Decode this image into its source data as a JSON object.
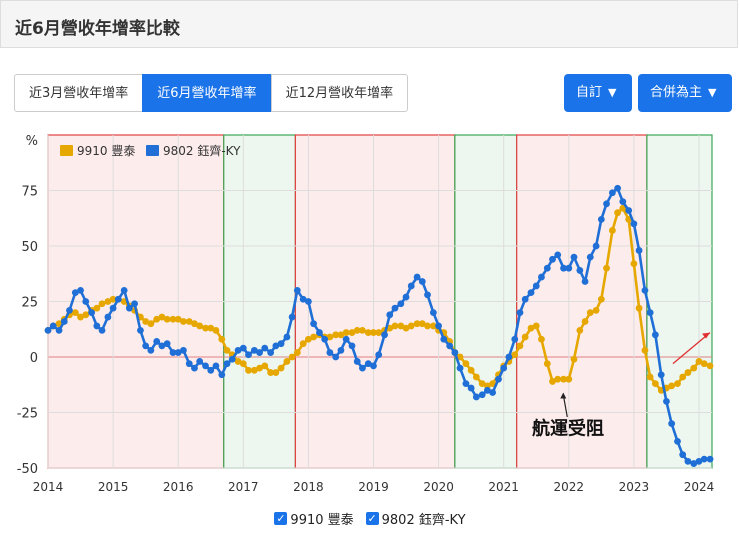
{
  "header": {
    "title": "近6月營收年增率比較"
  },
  "tabs": [
    {
      "label": "近3月營收年增率",
      "active": false
    },
    {
      "label": "近6月營收年增率",
      "active": true
    },
    {
      "label": "近12月營收年增率",
      "active": false
    }
  ],
  "buttons": {
    "custom_label": "自訂",
    "merge_label": "合併為主"
  },
  "legend": {
    "items": [
      "9910 豐泰",
      "9802 鈺齊-KY"
    ]
  },
  "chart_data": {
    "type": "line",
    "ylabel": "%",
    "ylim": [
      -50,
      100
    ],
    "yticks": [
      75,
      50,
      25,
      0,
      -25,
      -50
    ],
    "xlim": [
      2014.0,
      2024.2
    ],
    "xticks": [
      "2014",
      "2015",
      "2016",
      "2017",
      "2018",
      "2019",
      "2020",
      "2021",
      "2022",
      "2023",
      "2024"
    ],
    "grid": true,
    "legend_position": "top-left",
    "annotation": {
      "text": "航運受阻",
      "x": 2021.9,
      "y": -15
    },
    "trend_arrow": {
      "from": [
        2023.6,
        -3
      ],
      "to": [
        2024.2,
        11
      ],
      "color": "#e03030"
    },
    "regions": [
      {
        "start": 2014.0,
        "end": 2016.7,
        "type": "decline",
        "fill": "#fdecec",
        "stroke": "#e04040"
      },
      {
        "start": 2016.7,
        "end": 2017.8,
        "type": "growth",
        "fill": "#edf7ef",
        "stroke": "#3aa655"
      },
      {
        "start": 2017.8,
        "end": 2020.25,
        "type": "decline",
        "fill": "#fdecec",
        "stroke": "#e04040"
      },
      {
        "start": 2020.25,
        "end": 2021.2,
        "type": "growth",
        "fill": "#edf7ef",
        "stroke": "#3aa655"
      },
      {
        "start": 2021.2,
        "end": 2023.2,
        "type": "decline",
        "fill": "#fdecec",
        "stroke": "#e04040"
      },
      {
        "start": 2023.2,
        "end": 2024.2,
        "type": "growth",
        "fill": "#edf7ef",
        "stroke": "#3aa655"
      }
    ],
    "series": [
      {
        "name": "9910 豐泰",
        "color": "#e6a800",
        "points": [
          [
            2014.0,
            12
          ],
          [
            2014.08,
            14
          ],
          [
            2014.17,
            15
          ],
          [
            2014.25,
            17
          ],
          [
            2014.33,
            19
          ],
          [
            2014.42,
            20
          ],
          [
            2014.5,
            18
          ],
          [
            2014.58,
            19
          ],
          [
            2014.67,
            21
          ],
          [
            2014.75,
            22
          ],
          [
            2014.83,
            24
          ],
          [
            2014.92,
            25
          ],
          [
            2015.0,
            26
          ],
          [
            2015.08,
            26
          ],
          [
            2015.17,
            25
          ],
          [
            2015.25,
            23
          ],
          [
            2015.33,
            21
          ],
          [
            2015.42,
            18
          ],
          [
            2015.5,
            16
          ],
          [
            2015.58,
            15
          ],
          [
            2015.67,
            17
          ],
          [
            2015.75,
            18
          ],
          [
            2015.83,
            17
          ],
          [
            2015.92,
            17
          ],
          [
            2016.0,
            17
          ],
          [
            2016.08,
            16
          ],
          [
            2016.17,
            16
          ],
          [
            2016.25,
            15
          ],
          [
            2016.33,
            14
          ],
          [
            2016.42,
            13
          ],
          [
            2016.5,
            13
          ],
          [
            2016.58,
            12
          ],
          [
            2016.67,
            8
          ],
          [
            2016.75,
            3
          ],
          [
            2016.83,
            1
          ],
          [
            2016.92,
            -2
          ],
          [
            2017.0,
            -3
          ],
          [
            2017.08,
            -6
          ],
          [
            2017.17,
            -6
          ],
          [
            2017.25,
            -5
          ],
          [
            2017.33,
            -4
          ],
          [
            2017.42,
            -7
          ],
          [
            2017.5,
            -7
          ],
          [
            2017.58,
            -5
          ],
          [
            2017.67,
            -2
          ],
          [
            2017.75,
            0
          ],
          [
            2017.83,
            2
          ],
          [
            2017.92,
            6
          ],
          [
            2018.0,
            8
          ],
          [
            2018.08,
            9
          ],
          [
            2018.17,
            10
          ],
          [
            2018.25,
            9
          ],
          [
            2018.33,
            9
          ],
          [
            2018.42,
            10
          ],
          [
            2018.5,
            10
          ],
          [
            2018.58,
            11
          ],
          [
            2018.67,
            11
          ],
          [
            2018.75,
            12
          ],
          [
            2018.83,
            12
          ],
          [
            2018.92,
            11
          ],
          [
            2019.0,
            11
          ],
          [
            2019.08,
            11
          ],
          [
            2019.17,
            12
          ],
          [
            2019.25,
            13
          ],
          [
            2019.33,
            14
          ],
          [
            2019.42,
            14
          ],
          [
            2019.5,
            13
          ],
          [
            2019.58,
            14
          ],
          [
            2019.67,
            15
          ],
          [
            2019.75,
            15
          ],
          [
            2019.83,
            14
          ],
          [
            2019.92,
            14
          ],
          [
            2020.0,
            12
          ],
          [
            2020.08,
            11
          ],
          [
            2020.17,
            7
          ],
          [
            2020.25,
            2
          ],
          [
            2020.33,
            0
          ],
          [
            2020.42,
            -3
          ],
          [
            2020.5,
            -6
          ],
          [
            2020.58,
            -9
          ],
          [
            2020.67,
            -12
          ],
          [
            2020.75,
            -13
          ],
          [
            2020.83,
            -12
          ],
          [
            2020.92,
            -8
          ],
          [
            2021.0,
            -4
          ],
          [
            2021.08,
            -2
          ],
          [
            2021.17,
            1
          ],
          [
            2021.25,
            5
          ],
          [
            2021.33,
            9
          ],
          [
            2021.42,
            13
          ],
          [
            2021.5,
            14
          ],
          [
            2021.58,
            8
          ],
          [
            2021.67,
            -3
          ],
          [
            2021.75,
            -11
          ],
          [
            2021.83,
            -10
          ],
          [
            2021.92,
            -10
          ],
          [
            2022.0,
            -10
          ],
          [
            2022.08,
            -1
          ],
          [
            2022.17,
            12
          ],
          [
            2022.25,
            16
          ],
          [
            2022.33,
            20
          ],
          [
            2022.42,
            21
          ],
          [
            2022.5,
            26
          ],
          [
            2022.58,
            40
          ],
          [
            2022.67,
            57
          ],
          [
            2022.75,
            65
          ],
          [
            2022.83,
            67
          ],
          [
            2022.92,
            62
          ],
          [
            2023.0,
            42
          ],
          [
            2023.08,
            22
          ],
          [
            2023.17,
            3
          ],
          [
            2023.25,
            -9
          ],
          [
            2023.33,
            -12
          ],
          [
            2023.42,
            -15
          ],
          [
            2023.5,
            -14
          ],
          [
            2023.58,
            -13
          ],
          [
            2023.67,
            -12
          ],
          [
            2023.75,
            -9
          ],
          [
            2023.83,
            -7
          ],
          [
            2023.92,
            -5
          ],
          [
            2024.0,
            -2
          ],
          [
            2024.08,
            -3
          ],
          [
            2024.17,
            -4
          ]
        ]
      },
      {
        "name": "9802 鈺齊-KY",
        "color": "#1f6fd6",
        "points": [
          [
            2014.0,
            12
          ],
          [
            2014.08,
            14
          ],
          [
            2014.17,
            12
          ],
          [
            2014.25,
            16
          ],
          [
            2014.33,
            21
          ],
          [
            2014.42,
            29
          ],
          [
            2014.5,
            30
          ],
          [
            2014.58,
            25
          ],
          [
            2014.67,
            20
          ],
          [
            2014.75,
            14
          ],
          [
            2014.83,
            12
          ],
          [
            2014.92,
            18
          ],
          [
            2015.0,
            22
          ],
          [
            2015.08,
            26
          ],
          [
            2015.17,
            30
          ],
          [
            2015.25,
            22
          ],
          [
            2015.33,
            24
          ],
          [
            2015.42,
            12
          ],
          [
            2015.5,
            5
          ],
          [
            2015.58,
            3
          ],
          [
            2015.67,
            7
          ],
          [
            2015.75,
            5
          ],
          [
            2015.83,
            6
          ],
          [
            2015.92,
            2
          ],
          [
            2016.0,
            2
          ],
          [
            2016.08,
            3
          ],
          [
            2016.17,
            -3
          ],
          [
            2016.25,
            -5
          ],
          [
            2016.33,
            -2
          ],
          [
            2016.42,
            -4
          ],
          [
            2016.5,
            -6
          ],
          [
            2016.58,
            -4
          ],
          [
            2016.67,
            -8
          ],
          [
            2016.75,
            -3
          ],
          [
            2016.83,
            -1
          ],
          [
            2016.92,
            3
          ],
          [
            2017.0,
            4
          ],
          [
            2017.08,
            1
          ],
          [
            2017.17,
            3
          ],
          [
            2017.25,
            2
          ],
          [
            2017.33,
            4
          ],
          [
            2017.42,
            2
          ],
          [
            2017.5,
            5
          ],
          [
            2017.58,
            6
          ],
          [
            2017.67,
            9
          ],
          [
            2017.75,
            18
          ],
          [
            2017.83,
            30
          ],
          [
            2017.92,
            26
          ],
          [
            2018.0,
            25
          ],
          [
            2018.08,
            15
          ],
          [
            2018.17,
            11
          ],
          [
            2018.25,
            8
          ],
          [
            2018.33,
            2
          ],
          [
            2018.42,
            0
          ],
          [
            2018.5,
            3
          ],
          [
            2018.58,
            8
          ],
          [
            2018.67,
            5
          ],
          [
            2018.75,
            -2
          ],
          [
            2018.83,
            -5
          ],
          [
            2018.92,
            -3
          ],
          [
            2019.0,
            -4
          ],
          [
            2019.08,
            1
          ],
          [
            2019.17,
            10
          ],
          [
            2019.25,
            19
          ],
          [
            2019.33,
            22
          ],
          [
            2019.42,
            24
          ],
          [
            2019.5,
            27
          ],
          [
            2019.58,
            32
          ],
          [
            2019.67,
            36
          ],
          [
            2019.75,
            34
          ],
          [
            2019.83,
            28
          ],
          [
            2019.92,
            20
          ],
          [
            2020.0,
            14
          ],
          [
            2020.08,
            8
          ],
          [
            2020.17,
            5
          ],
          [
            2020.25,
            2
          ],
          [
            2020.33,
            -5
          ],
          [
            2020.42,
            -12
          ],
          [
            2020.5,
            -14
          ],
          [
            2020.58,
            -18
          ],
          [
            2020.67,
            -17
          ],
          [
            2020.75,
            -15
          ],
          [
            2020.83,
            -16
          ],
          [
            2020.92,
            -10
          ],
          [
            2021.0,
            -5
          ],
          [
            2021.08,
            0
          ],
          [
            2021.17,
            8
          ],
          [
            2021.25,
            20
          ],
          [
            2021.33,
            26
          ],
          [
            2021.42,
            29
          ],
          [
            2021.5,
            32
          ],
          [
            2021.58,
            36
          ],
          [
            2021.67,
            40
          ],
          [
            2021.75,
            44
          ],
          [
            2021.83,
            46
          ],
          [
            2021.92,
            40
          ],
          [
            2022.0,
            40
          ],
          [
            2022.08,
            45
          ],
          [
            2022.17,
            39
          ],
          [
            2022.25,
            34
          ],
          [
            2022.33,
            45
          ],
          [
            2022.42,
            50
          ],
          [
            2022.5,
            62
          ],
          [
            2022.58,
            69
          ],
          [
            2022.67,
            74
          ],
          [
            2022.75,
            76
          ],
          [
            2022.83,
            70
          ],
          [
            2022.92,
            66
          ],
          [
            2023.0,
            60
          ],
          [
            2023.08,
            48
          ],
          [
            2023.17,
            30
          ],
          [
            2023.25,
            20
          ],
          [
            2023.33,
            10
          ],
          [
            2023.42,
            -8
          ],
          [
            2023.5,
            -20
          ],
          [
            2023.58,
            -30
          ],
          [
            2023.67,
            -38
          ],
          [
            2023.75,
            -44
          ],
          [
            2023.83,
            -47
          ],
          [
            2023.92,
            -48
          ],
          [
            2024.0,
            -47
          ],
          [
            2024.08,
            -46
          ],
          [
            2024.17,
            -46
          ]
        ]
      }
    ]
  }
}
